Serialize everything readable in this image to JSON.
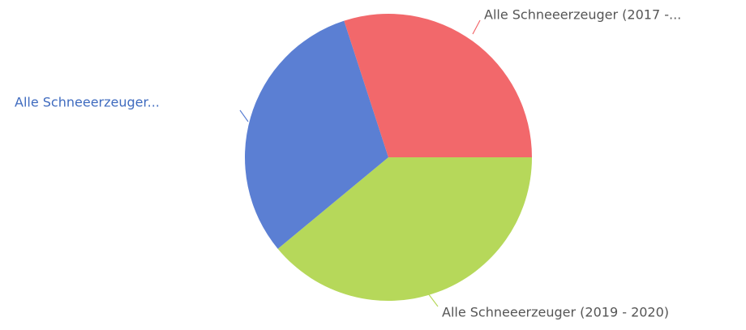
{
  "chart_data": {
    "type": "pie",
    "categories": [
      "Alle Schneeerzeuger (2019 - 2020)",
      "Alle Schneeerzeuger...",
      "Alle Schneeerzeuger (2017 -..."
    ],
    "values": [
      39,
      31,
      30
    ],
    "colors": [
      "#b6d85a",
      "#5b7fd3",
      "#f2686b"
    ]
  }
}
